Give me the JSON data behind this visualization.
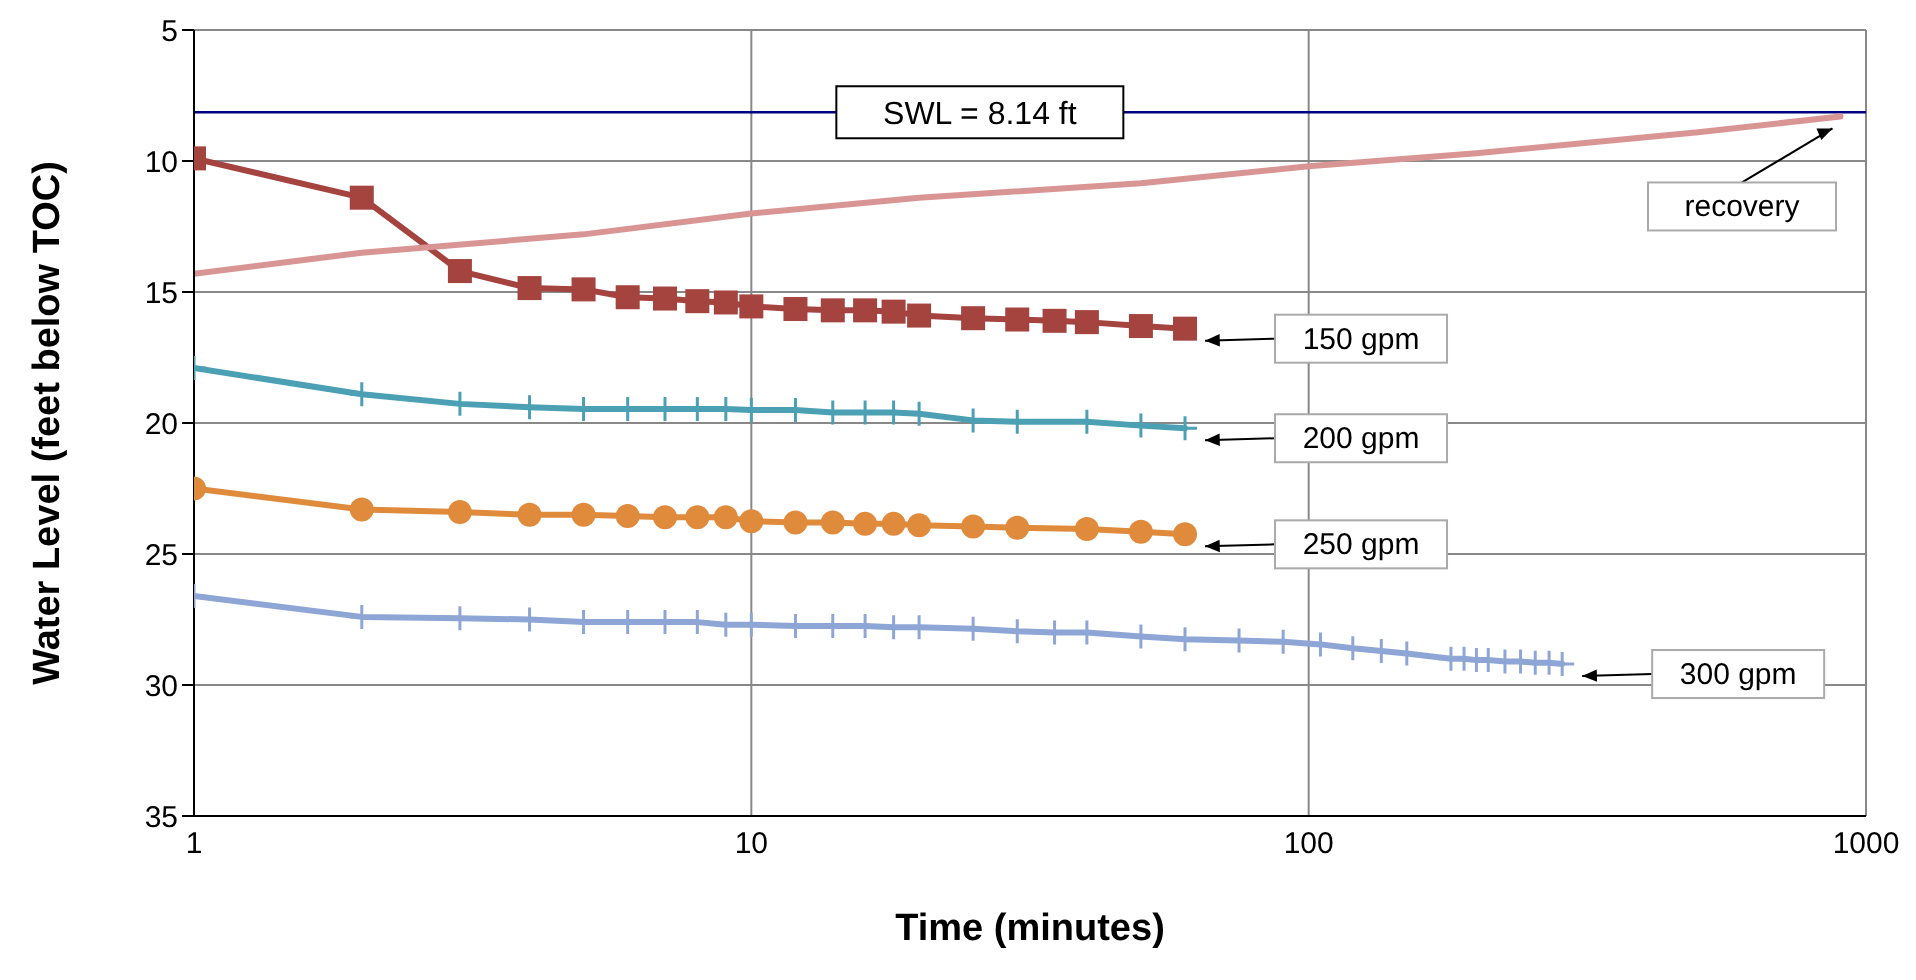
{
  "chart_data": {
    "type": "line",
    "xlabel": "Time (minutes)",
    "ylabel": "Water Level (feet below TOC)",
    "log": "x",
    "xlim": [
      1,
      1000
    ],
    "xticks": [
      1,
      10,
      100,
      1000
    ],
    "ylim": [
      35,
      5
    ],
    "yticks": [
      5,
      10,
      15,
      20,
      25,
      30,
      35
    ],
    "grid": true,
    "ref_lines": [
      {
        "axis": "y",
        "value": 8.14,
        "label": "SWL = 8.14 ft",
        "color": "#000080"
      }
    ],
    "series": [
      {
        "name": "150 gpm",
        "color": "#a5433f",
        "marker": "square",
        "x": [
          1,
          2,
          3,
          4,
          5,
          6,
          7,
          8,
          9,
          10,
          12,
          14,
          16,
          18,
          20,
          25,
          30,
          35,
          40,
          50,
          60
        ],
        "values": [
          9.9,
          11.4,
          14.2,
          14.85,
          14.9,
          15.2,
          15.25,
          15.35,
          15.4,
          15.55,
          15.65,
          15.7,
          15.7,
          15.75,
          15.9,
          16.0,
          16.05,
          16.1,
          16.15,
          16.3,
          16.4
        ]
      },
      {
        "name": "200 gpm",
        "color": "#4ba0b4",
        "marker": "cross",
        "x": [
          1,
          2,
          3,
          4,
          5,
          6,
          7,
          8,
          9,
          10,
          12,
          14,
          16,
          18,
          20,
          25,
          30,
          40,
          50,
          60
        ],
        "values": [
          17.9,
          18.9,
          19.27,
          19.4,
          19.47,
          19.47,
          19.47,
          19.47,
          19.47,
          19.5,
          19.5,
          19.6,
          19.6,
          19.6,
          19.65,
          19.9,
          19.95,
          19.95,
          20.1,
          20.2
        ]
      },
      {
        "name": "250 gpm",
        "color": "#e08a3c",
        "marker": "circle",
        "x": [
          1,
          2,
          3,
          4,
          5,
          6,
          7,
          8,
          9,
          10,
          12,
          14,
          16,
          18,
          20,
          25,
          30,
          40,
          50,
          60
        ],
        "values": [
          22.5,
          23.3,
          23.4,
          23.5,
          23.5,
          23.55,
          23.6,
          23.6,
          23.6,
          23.75,
          23.8,
          23.8,
          23.85,
          23.85,
          23.9,
          23.95,
          24.0,
          24.05,
          24.15,
          24.25
        ]
      },
      {
        "name": "300 gpm",
        "color": "#8ea6d6",
        "marker": "cross",
        "x": [
          1,
          2,
          3,
          4,
          5,
          6,
          7,
          8,
          9,
          10,
          12,
          14,
          16,
          18,
          20,
          25,
          30,
          35,
          40,
          50,
          60,
          75,
          90,
          105,
          120,
          135,
          150,
          180,
          190,
          200,
          210,
          225,
          240,
          255,
          270,
          285
        ],
        "values": [
          26.6,
          27.4,
          27.45,
          27.5,
          27.6,
          27.6,
          27.6,
          27.6,
          27.7,
          27.7,
          27.75,
          27.75,
          27.75,
          27.8,
          27.8,
          27.85,
          27.95,
          28.0,
          28.0,
          28.15,
          28.25,
          28.3,
          28.35,
          28.45,
          28.6,
          28.7,
          28.8,
          29.0,
          29.0,
          29.05,
          29.05,
          29.1,
          29.1,
          29.15,
          29.15,
          29.2
        ]
      },
      {
        "name": "recovery",
        "color": "#d99594",
        "marker": "none",
        "x": [
          1,
          2,
          5,
          10,
          20,
          50,
          100,
          200,
          500,
          900
        ],
        "values": [
          14.3,
          13.5,
          12.8,
          12.0,
          11.4,
          10.85,
          10.2,
          9.7,
          8.9,
          8.3
        ]
      }
    ]
  }
}
